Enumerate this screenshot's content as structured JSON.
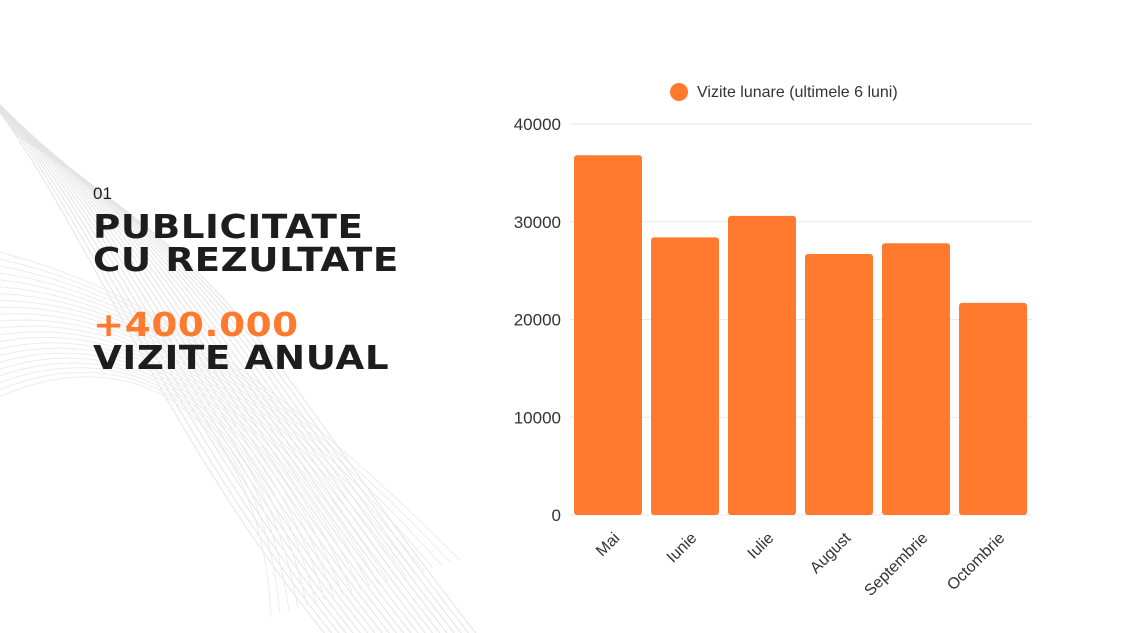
{
  "left": {
    "number": "01",
    "title_line1": "PUBLICITATE",
    "title_line2": "CU REZULTATE",
    "highlight": "+400.000",
    "subtitle": "VIZITE ANUAL"
  },
  "colors": {
    "accent": "#ff7a2e",
    "text": "#1d1d1d",
    "grid": "#e8e8e8"
  },
  "chart_data": {
    "type": "bar",
    "title": "",
    "xlabel": "",
    "ylabel": "",
    "legend": "top",
    "grid": true,
    "ylim": [
      0,
      40000
    ],
    "yticks": [
      "0",
      "10000",
      "20000",
      "30000",
      "40000"
    ],
    "categories": [
      "Mai",
      "Iunie",
      "Iulie",
      "August",
      "Septembrie",
      "Octombrie"
    ],
    "series": [
      {
        "name": "Vizite lunare (ultimele 6 luni)",
        "color": "#ff7a2e",
        "values": [
          36800,
          28400,
          30600,
          26700,
          27800,
          21700
        ]
      }
    ]
  }
}
